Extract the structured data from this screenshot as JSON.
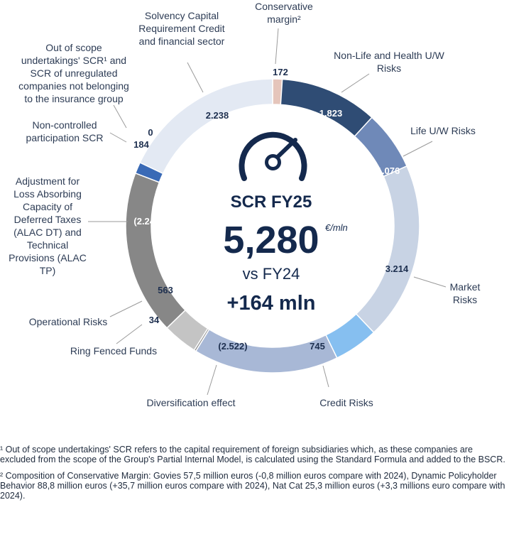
{
  "chart_data": {
    "type": "donut",
    "title": "SCR FY25",
    "total": {
      "value": "5,280",
      "unit": "€/mln"
    },
    "comparison": {
      "label": "vs FY24",
      "delta": "+164 mln"
    },
    "segments": [
      {
        "name": "Conservative margin²",
        "label": "172",
        "value": 172,
        "color": "#e5c5bb",
        "lines": [
          "Conservative",
          "margin²"
        ]
      },
      {
        "name": "Non-Life and Health U/W Risks",
        "label": "1.823",
        "value": 1823,
        "color": "#2f4c74",
        "lines": [
          "Non-Life and Health U/W",
          "Risks"
        ]
      },
      {
        "name": "Life U/W Risks",
        "label": "1.076",
        "value": 1076,
        "color": "#6f89b8",
        "lines": [
          "Life U/W Risks"
        ]
      },
      {
        "name": "Market Risks",
        "label": "3.214",
        "value": 3214,
        "color": "#c8d3e4",
        "lines": [
          "Market",
          "Risks"
        ]
      },
      {
        "name": "Credit Risks",
        "label": "745",
        "value": 745,
        "color": "#86bff0",
        "lines": [
          "Credit Risks"
        ]
      },
      {
        "name": "Diversification effect",
        "label": "(2.522)",
        "value": 2522,
        "color": "#a8b8d6",
        "lines": [
          "Diversification effect"
        ]
      },
      {
        "name": "Ring Fenced Funds",
        "label": "34",
        "value": 34,
        "color": "#8e8e8e",
        "lines": [
          "Ring Fenced Funds"
        ]
      },
      {
        "name": "Operational Risks",
        "label": "563",
        "value": 563,
        "color": "#c4c4c4",
        "lines": [
          "Operational Risks"
        ]
      },
      {
        "name": "Adjustment for Loss Absorbing Capacity of Deferred Taxes (ALAC DT) and Technical Provisions (ALAC TP)",
        "label": "(2.245)",
        "value": 2245,
        "color": "#878787",
        "lines": [
          "Adjustment for",
          "Loss Absorbing",
          "Capacity of",
          "Deferred Taxes",
          "(ALAC DT) and",
          "Technical",
          "Provisions (ALAC",
          "TP)"
        ]
      },
      {
        "name": "Non-controlled participation SCR",
        "label": "184",
        "value": 184,
        "color": "#3a6ab6",
        "lines": [
          "Non-controlled",
          "participation SCR"
        ]
      },
      {
        "name": "Out of scope undertakings' SCR¹ and SCR of unregulated companies not belonging to the insurance group",
        "label": "0",
        "value": 0,
        "color": "#e3e9f3",
        "lines": [
          "Out of scope",
          "undertakings' SCR¹ and",
          "SCR of unregulated",
          "companies not belonging",
          "to the insurance group"
        ]
      },
      {
        "name": "Solvency Capital Requirement Credit and financial sector",
        "label": "2.238",
        "value": 2238,
        "color": "#e3e9f3",
        "lines": [
          "Solvency Capital",
          "Requirement Credit",
          "and financial sector"
        ]
      }
    ]
  },
  "footnotes": {
    "note1": "¹ Out of scope undertakings' SCR refers to the capital requirement of foreign subsidiaries which, as these companies are excluded from the scope of the Group's Partial Internal Model, is calculated using the Standard Formula and added to the BSCR.",
    "note2": "² Composition of Conservative Margin: Govies 57,5 million euros (-0,8 million euros compare with 2024), Dynamic Policyholder Behavior 88,8 million euros (+35,7 million euros compare with 2024), Nat Cat 25,3 million euros (+3,3 millions euro compare with 2024)."
  }
}
